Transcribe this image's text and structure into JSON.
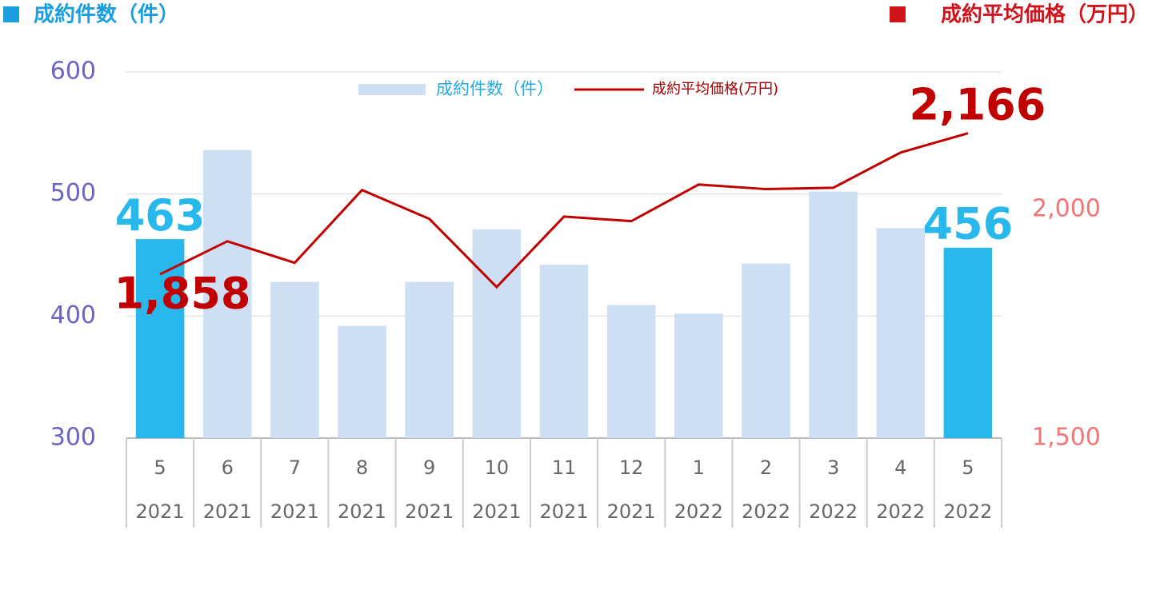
{
  "chart_data": {
    "type": "bar_line",
    "left_title": "成約件数（件）",
    "right_title": "成約平均価格（万円）",
    "categories": [
      "5",
      "6",
      "7",
      "8",
      "9",
      "10",
      "11",
      "12",
      "1",
      "2",
      "3",
      "4",
      "5"
    ],
    "category_years": [
      "2021",
      "2021",
      "2021",
      "2021",
      "2021",
      "2021",
      "2021",
      "2021",
      "2022",
      "2022",
      "2022",
      "2022",
      "2022"
    ],
    "series": [
      {
        "name": "成約件数（件）",
        "type": "bar",
        "color": "#cfdff3",
        "highlight_color": "#29b8ec",
        "highlight": [
          0,
          12
        ],
        "values": [
          463,
          536,
          428,
          392,
          428,
          471,
          442,
          409,
          402,
          443,
          502,
          472,
          456
        ],
        "value_labels": [
          "463",
          null,
          null,
          null,
          null,
          null,
          null,
          null,
          null,
          null,
          null,
          null,
          "456"
        ]
      },
      {
        "name": "成約平均価格(万円)",
        "type": "line",
        "axis": "y2",
        "color": "#c00000",
        "values": [
          1858,
          1930,
          1883,
          2042,
          1979,
          1830,
          1984,
          1974,
          2054,
          2044,
          2047,
          2124,
          2166
        ],
        "value_labels": [
          "1,858",
          null,
          null,
          null,
          null,
          null,
          null,
          null,
          null,
          null,
          null,
          null,
          "2,166"
        ]
      }
    ],
    "ylim": [
      300,
      600
    ],
    "yticks": [
      300,
      400,
      500,
      600
    ],
    "y2lim": [
      1500,
      2300
    ],
    "y2ticks": [
      {
        "value": 1500,
        "label": "1,500"
      },
      {
        "value": 2000,
        "label": "2,000"
      }
    ],
    "grid": true,
    "legend": "top"
  }
}
